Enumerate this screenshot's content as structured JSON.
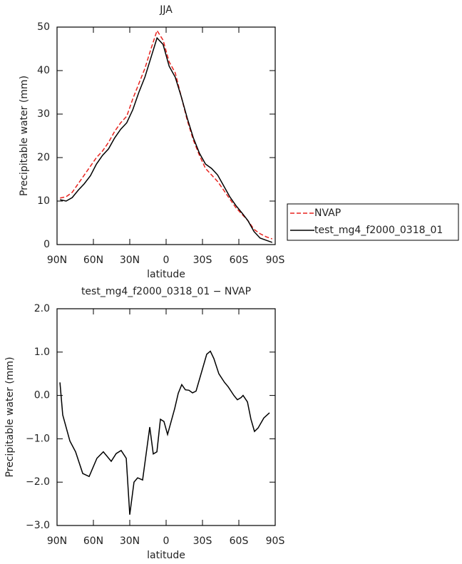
{
  "chart_data": [
    {
      "type": "line",
      "title": "JJA",
      "x_label": "latitude",
      "y_label": "Precipitable water (mm)",
      "x": [
        87.5,
        82.5,
        77.5,
        72.5,
        67.5,
        62.5,
        57.5,
        52.5,
        47.5,
        42.5,
        37.5,
        32.5,
        27.5,
        22.5,
        17.5,
        12.5,
        7.5,
        2.5,
        -2.5,
        -7.5,
        -12.5,
        -17.5,
        -22.5,
        -27.5,
        -32.5,
        -37.5,
        -42.5,
        -47.5,
        -52.5,
        -57.5,
        -62.5,
        -67.5,
        -72.5,
        -77.5,
        -82.5,
        -87.5
      ],
      "series": [
        {
          "name": "NVAP",
          "color": "#e8231e",
          "dash": true,
          "values": [
            10.7,
            11,
            12,
            14,
            16,
            18,
            20,
            21.5,
            23.5,
            26,
            28,
            29.5,
            33.5,
            37,
            40.5,
            45,
            49.2,
            47,
            42,
            39.5,
            34,
            28.5,
            24,
            20.5,
            17.5,
            16,
            14.5,
            12.5,
            10.5,
            8.5,
            7,
            5.5,
            3.5,
            2.5,
            1.8,
            1.3
          ]
        },
        {
          "name": "test_mg4_f2000_0318_01",
          "color": "#000000",
          "dash": false,
          "values": [
            10.3,
            10,
            10.8,
            12.5,
            14,
            15.8,
            18.5,
            20.5,
            22,
            24.5,
            26.5,
            28,
            31,
            35,
            38.5,
            43,
            47.5,
            46,
            41,
            38.5,
            34,
            29,
            24.5,
            21,
            18.5,
            17.5,
            16,
            13.5,
            11,
            9,
            7.3,
            5.5,
            3,
            1.5,
            1,
            0.5
          ]
        }
      ],
      "xlim": [
        90,
        -90
      ],
      "xticks": [
        {
          "value": 90,
          "label": "90N"
        },
        {
          "value": 60,
          "label": "60N"
        },
        {
          "value": 30,
          "label": "30N"
        },
        0,
        {
          "value": -30,
          "label": "30S"
        },
        {
          "value": -60,
          "label": "60S"
        },
        {
          "value": -90,
          "label": "90S"
        }
      ],
      "ylim": [
        0,
        50
      ],
      "yticks": [
        0,
        10,
        20,
        30,
        40,
        50
      ],
      "legend": "right"
    },
    {
      "type": "line",
      "title": "test_mg4_f2000_0318_01 − NVAP",
      "x_label": "latitude",
      "y_label": "Precipitable water (mm)",
      "x": [
        87.6,
        85.3,
        79.4,
        74.7,
        68.8,
        63.5,
        57.1,
        51.8,
        45.3,
        41.2,
        37.1,
        32.9,
        30,
        26.5,
        23.5,
        19.4,
        16.5,
        13.5,
        10.6,
        7.6,
        4.7,
        1.8,
        -1.2,
        -7.1,
        -10,
        -12.9,
        -15.9,
        -18.8,
        -21.8,
        -24.7,
        -33.5,
        -36.5,
        -39.4,
        -43.5,
        -48.2,
        -51.2,
        -55.9,
        -58.8,
        -61.8,
        -63.5,
        -67.1,
        -70,
        -72.9,
        -75.9,
        -80.6,
        -85.3
      ],
      "series": [
        {
          "color": "#000000",
          "dash": false,
          "values": [
            0.3,
            -0.45,
            -1.05,
            -1.3,
            -1.8,
            -1.87,
            -1.45,
            -1.3,
            -1.52,
            -1.34,
            -1.27,
            -1.45,
            -2.75,
            -2.0,
            -1.9,
            -1.95,
            -1.35,
            -0.73,
            -1.35,
            -1.3,
            -0.55,
            -0.6,
            -0.9,
            -0.3,
            0.05,
            0.25,
            0.13,
            0.12,
            0.06,
            0.1,
            0.95,
            1.02,
            0.85,
            0.5,
            0.3,
            0.2,
            0.0,
            -0.1,
            -0.05,
            0.0,
            -0.15,
            -0.55,
            -0.83,
            -0.75,
            -0.52,
            -0.4
          ]
        }
      ],
      "xlim": [
        90,
        -90
      ],
      "xticks": [
        {
          "value": 90,
          "label": "90N"
        },
        {
          "value": 60,
          "label": "60N"
        },
        {
          "value": 30,
          "label": "30N"
        },
        0,
        {
          "value": -30,
          "label": "30S"
        },
        {
          "value": -60,
          "label": "60S"
        },
        {
          "value": -90,
          "label": "90S"
        }
      ],
      "ylim": [
        -3,
        2
      ],
      "yticks": [
        {
          "value": -3,
          "label": "−3.0"
        },
        {
          "value": -2,
          "label": "−2.0"
        },
        {
          "value": -1,
          "label": "−1.0"
        },
        {
          "value": 0,
          "label": "0.0"
        },
        {
          "value": 1,
          "label": "1.0"
        },
        {
          "value": 2,
          "label": "2.0"
        }
      ]
    }
  ]
}
